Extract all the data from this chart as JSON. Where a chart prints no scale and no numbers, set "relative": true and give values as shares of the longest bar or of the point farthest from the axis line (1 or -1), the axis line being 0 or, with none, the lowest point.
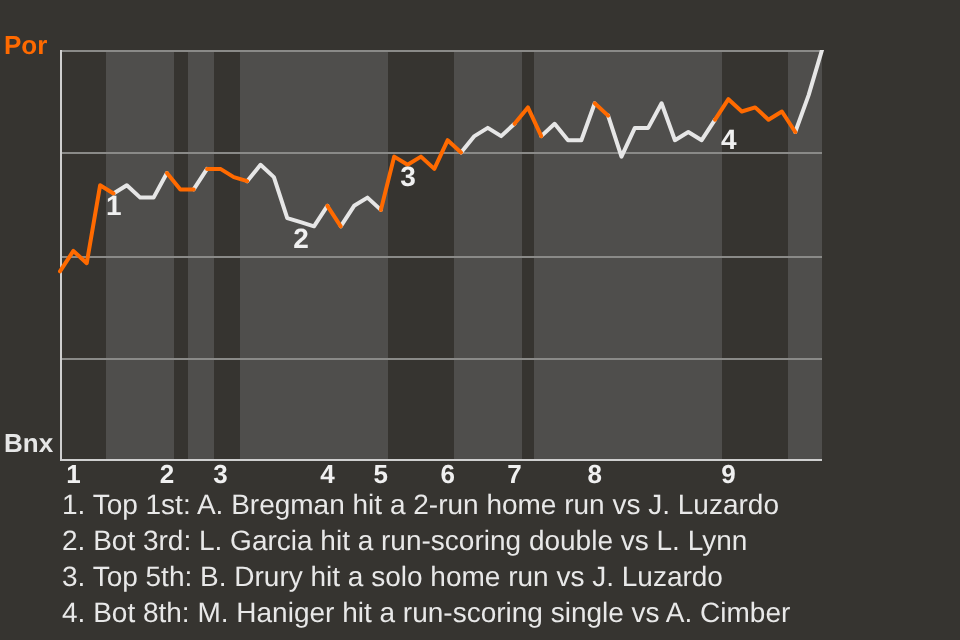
{
  "chart_data": {
    "type": "line",
    "relative": true,
    "categories": [
      null,
      "1",
      null,
      null,
      null,
      null,
      null,
      null,
      "2",
      null,
      null,
      null,
      "3",
      null,
      null,
      null,
      null,
      null,
      null,
      null,
      "4",
      null,
      null,
      null,
      "5",
      null,
      null,
      null,
      null,
      "6",
      null,
      null,
      null,
      null,
      "7",
      null,
      null,
      null,
      null,
      null,
      "8",
      null,
      null,
      null,
      null,
      null,
      null,
      null,
      null,
      null,
      "9",
      null,
      null,
      null,
      null,
      null,
      null,
      null
    ],
    "grid": "y",
    "legend": false,
    "marker": "none",
    "line_style": "solid",
    "series": [
      {
        "name": "Por",
        "color": "#ff6a00",
        "values": [
          0.46,
          0.51,
          0.48,
          0.67,
          0.65,
          null,
          null,
          null,
          0.7,
          0.66,
          0.66,
          0.71,
          0.71,
          0.69,
          0.68,
          null,
          null,
          null,
          null,
          null,
          0.62,
          0.57,
          null,
          null,
          0.61,
          0.74,
          0.72,
          0.74,
          0.71,
          0.78,
          0.75,
          null,
          null,
          null,
          0.82,
          0.86,
          0.79,
          null,
          null,
          null,
          0.87,
          0.84,
          null,
          null,
          null,
          null,
          null,
          null,
          null,
          0.83,
          0.88,
          0.85,
          0.86,
          0.83,
          0.85,
          0.8,
          null,
          null
        ]
      },
      {
        "name": "Bnx",
        "color": "#e6e6e6",
        "values": [
          null,
          null,
          null,
          null,
          0.65,
          0.67,
          0.64,
          0.64,
          0.7,
          null,
          0.66,
          0.71,
          null,
          null,
          0.68,
          0.72,
          0.69,
          0.59,
          0.58,
          0.57,
          0.62,
          0.57,
          0.62,
          0.64,
          0.61,
          null,
          null,
          null,
          null,
          null,
          0.75,
          0.79,
          0.81,
          0.79,
          0.82,
          null,
          0.79,
          0.82,
          0.78,
          0.78,
          0.87,
          0.84,
          0.74,
          0.81,
          0.81,
          0.87,
          0.78,
          0.8,
          0.78,
          0.83,
          null,
          null,
          null,
          null,
          null,
          0.8,
          0.89,
          1
        ]
      }
    ],
    "annotations": [
      {
        "text": "1",
        "y": 0.67
      },
      {
        "text": "2",
        "y": 0.59
      },
      {
        "text": "3",
        "y": 0.74
      },
      {
        "text": "4",
        "y": 0.83
      },
      "1. Top 1st: A. Bregman hit a 2-run home run vs J. Luzardo",
      "2. Bot 3rd: L. Garcia hit a run-scoring double vs L. Lynn",
      "3. Top 5th: B. Drury hit a solo home run vs J. Luzardo",
      "4. Bot 8th: M. Haniger hit a run-scoring single vs A. Cimber"
    ]
  }
}
